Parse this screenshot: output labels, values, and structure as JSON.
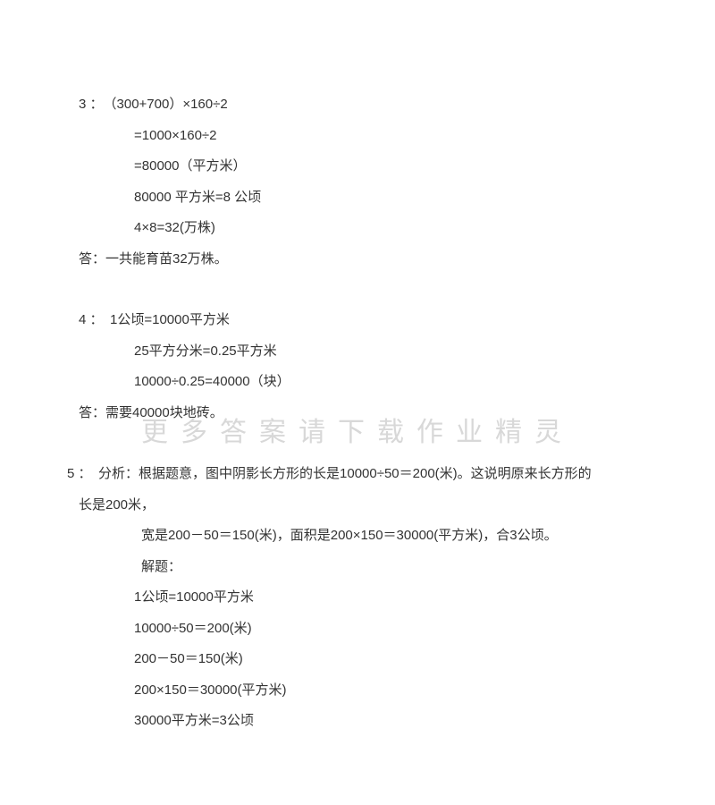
{
  "watermark": "更多答案请下载作业精灵",
  "q3": {
    "label": "3 ：　（300+700）×160÷2",
    "l1": "=1000×160÷2",
    "l2": "=80000（平方米）",
    "l3": " 80000 平方米=8 公顷",
    "l4": " 4×8=32(万株)",
    "ans": "答：一共能育苗32万株。"
  },
  "q4": {
    "label": "4 ：　1公顷=10000平方米",
    "l1": "25平方分米=0.25平方米",
    "l2": "10000÷0.25=40000（块）",
    "ans": "答：需要40000块地砖。"
  },
  "q5": {
    "p1": "　5 ：　分析：根据题意，图中阴影长方形的长是10000÷50＝200(米)。这说明原来长方形的",
    "p1c": "长是200米，",
    "p2": " 宽是200－50＝150(米)，面积是200×150＝30000(平方米)，合3公顷。",
    "p3": " 解题：",
    "l1": "1公顷=10000平方米",
    "l2": "10000÷50＝200(米)",
    "l3": "200－50＝150(米)",
    "l4": "200×150＝30000(平方米)",
    "l5": "30000平方米=3公顷"
  }
}
